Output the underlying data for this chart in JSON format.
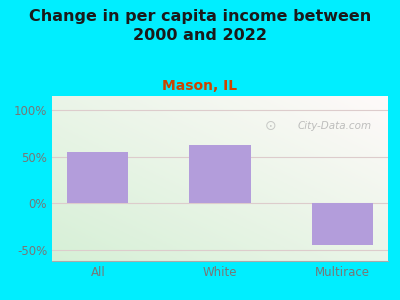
{
  "title": "Change in per capita income between\n2000 and 2022",
  "subtitle": "Mason, IL",
  "categories": [
    "All",
    "White",
    "Multirace"
  ],
  "values": [
    55,
    62,
    -45
  ],
  "bar_color": "#b39ddb",
  "bar_edge_color": "#b39ddb",
  "title_fontsize": 11.5,
  "title_color": "#1a1a1a",
  "subtitle_fontsize": 10,
  "subtitle_color": "#cc4400",
  "tick_label_color": "#777777",
  "background_outer": "#00eeff",
  "plot_bg_top": "#e8f4f8",
  "plot_bg_bottom": "#d8f0d8",
  "ylim": [
    -62,
    115
  ],
  "yticks": [
    -50,
    0,
    50,
    100
  ],
  "grid_color": "#ddcccc",
  "watermark": "City-Data.com"
}
